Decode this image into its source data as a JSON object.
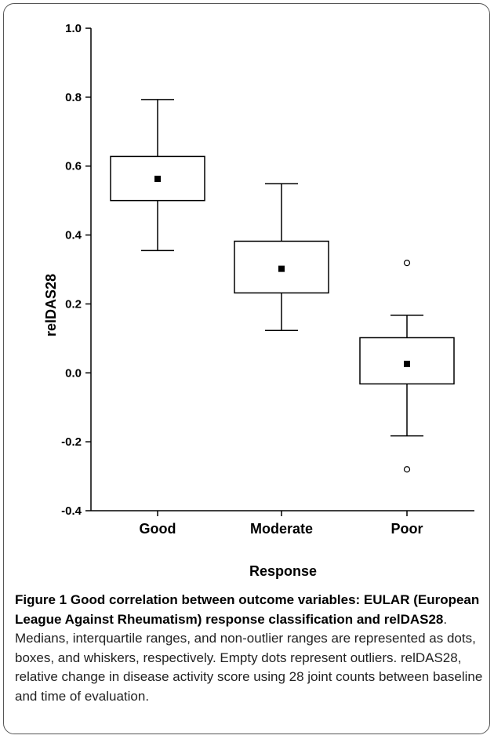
{
  "chart_data": {
    "type": "boxplot",
    "xlabel": "Response",
    "ylabel": "relDAS28",
    "ylim": [
      -0.4,
      1.0
    ],
    "yticks": [
      "-0.4",
      "-0.2",
      "0.0",
      "0.2",
      "0.4",
      "0.6",
      "0.8",
      "1.0"
    ],
    "categories": [
      "Good",
      "Moderate",
      "Poor"
    ],
    "boxes": [
      {
        "category": "Good",
        "whisker_low": 0.355,
        "q1": 0.5,
        "median": 0.563,
        "q3": 0.628,
        "whisker_high": 0.793,
        "outliers": []
      },
      {
        "category": "Moderate",
        "whisker_low": 0.123,
        "q1": 0.232,
        "median": 0.302,
        "q3": 0.382,
        "whisker_high": 0.549,
        "outliers": []
      },
      {
        "category": "Poor",
        "whisker_low": -0.183,
        "q1": -0.032,
        "median": 0.026,
        "q3": 0.102,
        "whisker_high": 0.167,
        "outliers": [
          0.319,
          -0.28
        ]
      }
    ],
    "grid": false
  },
  "caption": {
    "title": "Figure 1 Good correlation between outcome variables: EULAR (European League Against Rheumatism) response classification and relDAS28",
    "body": ". Medians, interquartile ranges, and non-outlier ranges are represented as dots, boxes, and whiskers, respectively. Empty dots represent outliers. relDAS28, relative change in disease activity score using 28 joint counts between baseline and time of evaluation."
  }
}
